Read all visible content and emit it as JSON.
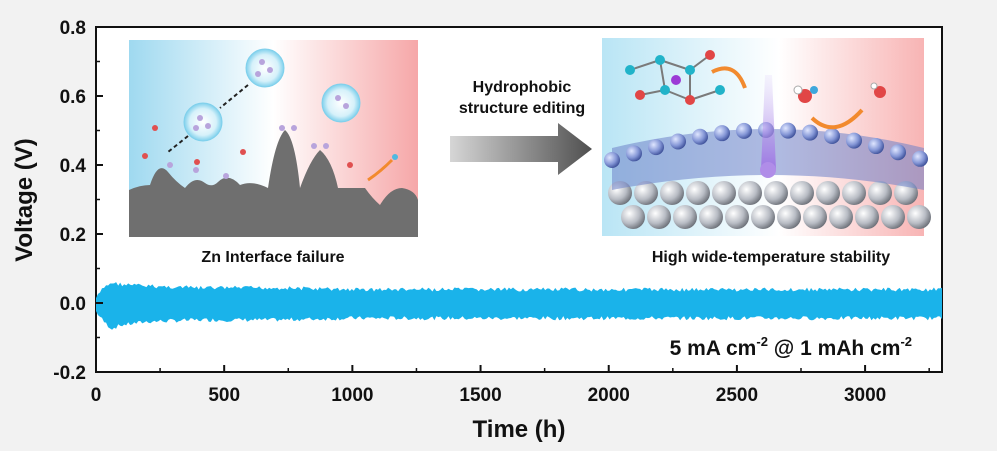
{
  "chart_data": {
    "type": "line",
    "xlabel": "Time (h)",
    "ylabel": "Voltage (V)",
    "xlim": [
      0,
      3300
    ],
    "ylim": [
      -0.2,
      0.8
    ],
    "xticks": [
      0,
      500,
      1000,
      1500,
      2000,
      2500,
      3000
    ],
    "yticks": [
      -0.2,
      0.0,
      0.2,
      0.4,
      0.6,
      0.8
    ],
    "ytick_labels": [
      "-0.2",
      "0.0",
      "0.2",
      "0.4",
      "0.6",
      "0.8"
    ],
    "series": [
      {
        "color": "#1ab3ea",
        "x": [
          0,
          30,
          60,
          100,
          200,
          400,
          700,
          1000,
          1500,
          2000,
          2500,
          3000,
          3300
        ],
        "upper": [
          0.02,
          0.05,
          0.065,
          0.06,
          0.055,
          0.05,
          0.05,
          0.045,
          0.045,
          0.045,
          0.045,
          0.045,
          0.045
        ],
        "lower": [
          -0.03,
          -0.06,
          -0.08,
          -0.07,
          -0.06,
          -0.055,
          -0.055,
          -0.05,
          -0.05,
          -0.05,
          -0.05,
          -0.05,
          -0.05
        ]
      }
    ],
    "annotation": {
      "text_main": "5 mA cm",
      "sup1": "-2",
      "text_mid": " @ 1 mAh cm",
      "sup2": "-2"
    }
  },
  "insets": {
    "left_caption": "Zn Interface failure",
    "arrow_label_line1": "Hydrophobic",
    "arrow_label_line2": "structure editing",
    "right_caption": "High wide-temperature stability"
  },
  "colors": {
    "trace": "#1ab3ea",
    "left_grad_start": "#9fd9f0",
    "left_grad_end": "#f6a7a8",
    "zn_surface": "#6f6f6f",
    "arrow": "#555555",
    "orange": "#f28a2e"
  }
}
